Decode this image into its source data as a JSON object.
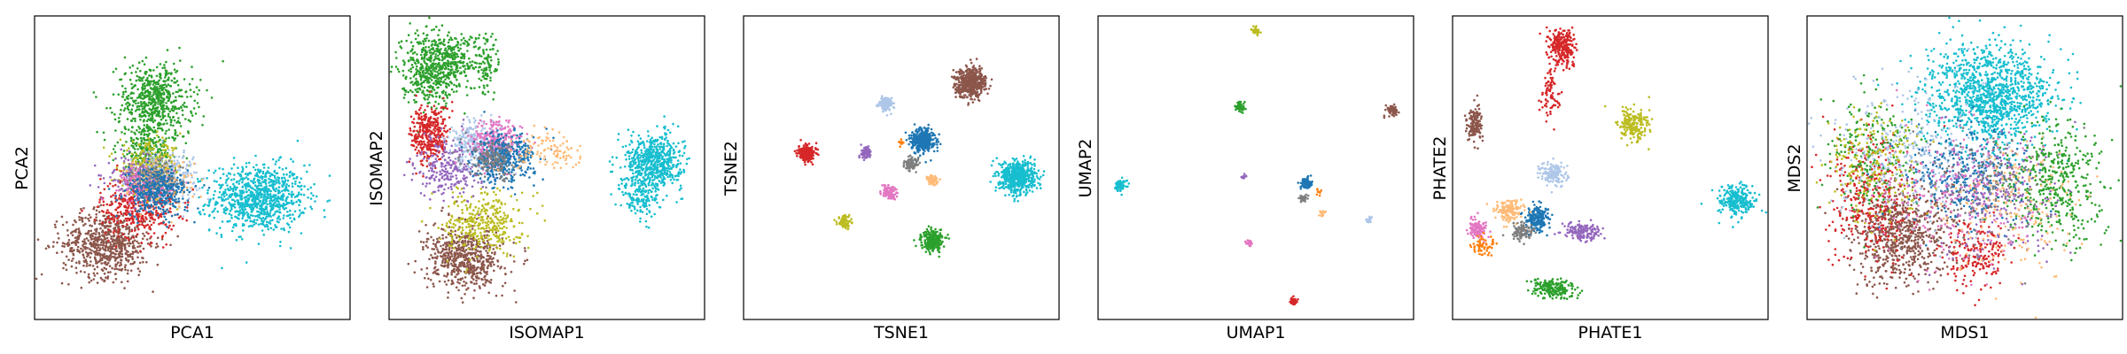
{
  "chart_data": [
    {
      "type": "scatter",
      "xlabel": "PCA1",
      "ylabel": "PCA2",
      "xlim": [
        0,
        100
      ],
      "ylim": [
        0,
        100
      ],
      "ticks": "none",
      "grid": false,
      "series": [
        {
          "color": "#17becf",
          "clusters": [
            {
              "x": 71,
              "y": 40,
              "sx": 7.5,
              "sy": 5.5,
              "n": 900
            }
          ]
        },
        {
          "color": "#8c564b",
          "clusters": [
            {
              "x": 23,
              "y": 25,
              "sx": 7,
              "sy": 5.5,
              "n": 700
            }
          ]
        },
        {
          "color": "#d62728",
          "clusters": [
            {
              "x": 33,
              "y": 37,
              "sx": 6,
              "sy": 5,
              "n": 400
            }
          ]
        },
        {
          "color": "#2ca02c",
          "clusters": [
            {
              "x": 38,
              "y": 72,
              "sx": 6,
              "sy": 6,
              "n": 600
            },
            {
              "x": 36,
              "y": 56,
              "sx": 5,
              "sy": 4,
              "n": 200
            }
          ]
        },
        {
          "color": "#bcbd22",
          "clusters": [
            {
              "x": 37,
              "y": 50,
              "sx": 5,
              "sy": 4,
              "n": 300
            }
          ]
        },
        {
          "color": "#9467bd",
          "clusters": [
            {
              "x": 31,
              "y": 47,
              "sx": 4,
              "sy": 3,
              "n": 150
            }
          ]
        },
        {
          "color": "#aec7e8",
          "clusters": [
            {
              "x": 42,
              "y": 48,
              "sx": 5,
              "sy": 4,
              "n": 200
            }
          ]
        },
        {
          "color": "#ffbb78",
          "clusters": [
            {
              "x": 40,
              "y": 45,
              "sx": 5,
              "sy": 4,
              "n": 150
            }
          ]
        },
        {
          "color": "#e377c2",
          "clusters": [
            {
              "x": 36,
              "y": 44,
              "sx": 4,
              "sy": 3,
              "n": 150
            }
          ]
        },
        {
          "color": "#7f7f7f",
          "clusters": [
            {
              "x": 39,
              "y": 46,
              "sx": 4,
              "sy": 3,
              "n": 150
            }
          ]
        },
        {
          "color": "#1f77b4",
          "clusters": [
            {
              "x": 39,
              "y": 42,
              "sx": 5,
              "sy": 4,
              "n": 350
            }
          ]
        }
      ]
    },
    {
      "type": "scatter",
      "xlabel": "ISOMAP1",
      "ylabel": "ISOMAP2",
      "xlim": [
        0,
        100
      ],
      "ylim": [
        0,
        100
      ],
      "ticks": "none",
      "grid": false,
      "series": [
        {
          "color": "#17becf",
          "clusters": [
            {
              "x": 84,
              "y": 52,
              "sx": 4.5,
              "sy": 4.5,
              "n": 600
            },
            {
              "x": 80,
              "y": 40,
              "sx": 3,
              "sy": 4,
              "n": 150
            }
          ]
        },
        {
          "color": "#2ca02c",
          "clusters": [
            {
              "x": 12,
              "y": 83,
              "sx": 4,
              "sy": 6,
              "n": 400
            },
            {
              "x": 20,
              "y": 85,
              "sx": 4,
              "sy": 5,
              "n": 250
            },
            {
              "x": 31,
              "y": 84,
              "sx": 2,
              "sy": 5,
              "n": 100
            }
          ]
        },
        {
          "color": "#d62728",
          "clusters": [
            {
              "x": 13,
              "y": 61,
              "sx": 3,
              "sy": 5,
              "n": 350
            }
          ]
        },
        {
          "color": "#8c564b",
          "clusters": [
            {
              "x": 24,
              "y": 20,
              "sx": 6,
              "sy": 5,
              "n": 600
            }
          ]
        },
        {
          "color": "#bcbd22",
          "clusters": [
            {
              "x": 30,
              "y": 32,
              "sx": 6,
              "sy": 5,
              "n": 350
            }
          ]
        },
        {
          "color": "#9467bd",
          "clusters": [
            {
              "x": 19,
              "y": 50,
              "sx": 5,
              "sy": 5,
              "n": 250
            }
          ]
        },
        {
          "color": "#aec7e8",
          "clusters": [
            {
              "x": 28,
              "y": 58,
              "sx": 5,
              "sy": 4,
              "n": 250
            }
          ]
        },
        {
          "color": "#e377c2",
          "clusters": [
            {
              "x": 34,
              "y": 58,
              "sx": 4,
              "sy": 4,
              "n": 300
            }
          ]
        },
        {
          "color": "#1f77b4",
          "clusters": [
            {
              "x": 36,
              "y": 53,
              "sx": 5,
              "sy": 4,
              "n": 400
            }
          ]
        },
        {
          "color": "#7f7f7f",
          "clusters": [
            {
              "x": 33,
              "y": 52,
              "sx": 4,
              "sy": 3,
              "n": 150
            }
          ]
        },
        {
          "color": "#ffbb78",
          "clusters": [
            {
              "x": 52,
              "y": 55,
              "sx": 6,
              "sy": 3,
              "n": 100
            }
          ]
        }
      ]
    },
    {
      "type": "scatter",
      "xlabel": "TSNE1",
      "ylabel": "TSNE2",
      "xlim": [
        0,
        100
      ],
      "ylim": [
        0,
        100
      ],
      "ticks": "none",
      "grid": false,
      "series": [
        {
          "color": "#8c564b",
          "clusters": [
            {
              "x": 72,
              "y": 78,
              "sx": 2.4,
              "sy": 2.4,
              "n": 500
            }
          ]
        },
        {
          "color": "#17becf",
          "clusters": [
            {
              "x": 87,
              "y": 47,
              "sx": 2.8,
              "sy": 2.6,
              "n": 600
            }
          ]
        },
        {
          "color": "#1f77b4",
          "clusters": [
            {
              "x": 57,
              "y": 59,
              "sx": 1.8,
              "sy": 1.8,
              "n": 400
            }
          ]
        },
        {
          "color": "#d62728",
          "clusters": [
            {
              "x": 20,
              "y": 55,
              "sx": 1.4,
              "sy": 1.4,
              "n": 200
            }
          ]
        },
        {
          "color": "#aec7e8",
          "clusters": [
            {
              "x": 45,
              "y": 71,
              "sx": 1.1,
              "sy": 1.1,
              "n": 120
            }
          ]
        },
        {
          "color": "#9467bd",
          "clusters": [
            {
              "x": 39,
              "y": 55,
              "sx": 0.9,
              "sy": 0.9,
              "n": 80
            }
          ]
        },
        {
          "color": "#7f7f7f",
          "clusters": [
            {
              "x": 53,
              "y": 51,
              "sx": 1.0,
              "sy": 1.0,
              "n": 100
            }
          ]
        },
        {
          "color": "#ffbb78",
          "clusters": [
            {
              "x": 60,
              "y": 46,
              "sx": 0.9,
              "sy": 0.9,
              "n": 80
            }
          ]
        },
        {
          "color": "#e377c2",
          "clusters": [
            {
              "x": 46,
              "y": 42,
              "sx": 1.1,
              "sy": 1.1,
              "n": 100
            }
          ]
        },
        {
          "color": "#bcbd22",
          "clusters": [
            {
              "x": 32,
              "y": 32,
              "sx": 1.1,
              "sy": 1.1,
              "n": 100
            }
          ]
        },
        {
          "color": "#2ca02c",
          "clusters": [
            {
              "x": 60,
              "y": 26,
              "sx": 1.7,
              "sy": 1.7,
              "n": 250
            }
          ]
        },
        {
          "color": "#ff7f0e",
          "clusters": [
            {
              "x": 50,
              "y": 58,
              "sx": 0.6,
              "sy": 0.6,
              "n": 10
            }
          ]
        }
      ]
    },
    {
      "type": "scatter",
      "xlabel": "UMAP1",
      "ylabel": "UMAP2",
      "xlim": [
        0,
        100
      ],
      "ylim": [
        0,
        100
      ],
      "ticks": "none",
      "grid": false,
      "series": [
        {
          "color": "#bcbd22",
          "clusters": [
            {
              "x": 50,
              "y": 95,
              "sx": 0.6,
              "sy": 0.6,
              "n": 40
            }
          ]
        },
        {
          "color": "#2ca02c",
          "clusters": [
            {
              "x": 45,
              "y": 70,
              "sx": 0.8,
              "sy": 0.8,
              "n": 50
            }
          ]
        },
        {
          "color": "#8c564b",
          "clusters": [
            {
              "x": 93,
              "y": 69,
              "sx": 0.9,
              "sy": 0.9,
              "n": 60
            }
          ]
        },
        {
          "color": "#17becf",
          "clusters": [
            {
              "x": 7,
              "y": 44,
              "sx": 1.0,
              "sy": 1.0,
              "n": 80
            }
          ]
        },
        {
          "color": "#9467bd",
          "clusters": [
            {
              "x": 46,
              "y": 47,
              "sx": 0.4,
              "sy": 0.4,
              "n": 10
            }
          ]
        },
        {
          "color": "#1f77b4",
          "clusters": [
            {
              "x": 66,
              "y": 45,
              "sx": 0.9,
              "sy": 0.9,
              "n": 80
            }
          ]
        },
        {
          "color": "#7f7f7f",
          "clusters": [
            {
              "x": 65,
              "y": 40,
              "sx": 0.6,
              "sy": 0.6,
              "n": 40
            }
          ]
        },
        {
          "color": "#ffbb78",
          "clusters": [
            {
              "x": 71,
              "y": 35,
              "sx": 0.5,
              "sy": 0.5,
              "n": 15
            }
          ]
        },
        {
          "color": "#aec7e8",
          "clusters": [
            {
              "x": 86,
              "y": 33,
              "sx": 0.5,
              "sy": 0.5,
              "n": 20
            }
          ]
        },
        {
          "color": "#e377c2",
          "clusters": [
            {
              "x": 48,
              "y": 25,
              "sx": 0.5,
              "sy": 0.5,
              "n": 30
            }
          ]
        },
        {
          "color": "#d62728",
          "clusters": [
            {
              "x": 62,
              "y": 6,
              "sx": 0.6,
              "sy": 0.6,
              "n": 40
            }
          ]
        },
        {
          "color": "#ff7f0e",
          "clusters": [
            {
              "x": 70,
              "y": 42,
              "sx": 0.8,
              "sy": 0.8,
              "n": 8
            }
          ]
        }
      ]
    },
    {
      "type": "scatter",
      "xlabel": "PHATE1",
      "ylabel": "PHATE2",
      "xlim": [
        0,
        100
      ],
      "ylim": [
        0,
        100
      ],
      "ticks": "none",
      "grid": false,
      "series": [
        {
          "color": "#d62728",
          "clusters": [
            {
              "x": 35,
              "y": 90,
              "sx": 2,
              "sy": 3,
              "n": 250
            },
            {
              "x": 31,
              "y": 75,
              "sx": 1.5,
              "sy": 4,
              "n": 80
            }
          ]
        },
        {
          "color": "#8c564b",
          "clusters": [
            {
              "x": 7,
              "y": 64,
              "sx": 1.2,
              "sy": 3,
              "n": 150
            }
          ]
        },
        {
          "color": "#bcbd22",
          "clusters": [
            {
              "x": 57,
              "y": 64,
              "sx": 2.5,
              "sy": 3,
              "n": 200
            }
          ]
        },
        {
          "color": "#17becf",
          "clusters": [
            {
              "x": 90,
              "y": 39,
              "sx": 3,
              "sy": 2.5,
              "n": 250
            }
          ]
        },
        {
          "color": "#aec7e8",
          "clusters": [
            {
              "x": 32,
              "y": 48,
              "sx": 2,
              "sy": 2,
              "n": 150
            }
          ]
        },
        {
          "color": "#1f77b4",
          "clusters": [
            {
              "x": 27,
              "y": 33,
              "sx": 2,
              "sy": 2,
              "n": 200
            }
          ]
        },
        {
          "color": "#ffbb78",
          "clusters": [
            {
              "x": 18,
              "y": 36,
              "sx": 2,
              "sy": 2,
              "n": 150
            }
          ]
        },
        {
          "color": "#9467bd",
          "clusters": [
            {
              "x": 41,
              "y": 29,
              "sx": 3,
              "sy": 1.5,
              "n": 150
            }
          ]
        },
        {
          "color": "#7f7f7f",
          "clusters": [
            {
              "x": 22,
              "y": 29,
              "sx": 2,
              "sy": 1.5,
              "n": 100
            }
          ]
        },
        {
          "color": "#e377c2",
          "clusters": [
            {
              "x": 8,
              "y": 30,
              "sx": 1.5,
              "sy": 1.5,
              "n": 120
            }
          ]
        },
        {
          "color": "#2ca02c",
          "clusters": [
            {
              "x": 32,
              "y": 10,
              "sx": 3.5,
              "sy": 1.5,
              "n": 200
            }
          ]
        },
        {
          "color": "#ff7f0e",
          "clusters": [
            {
              "x": 10,
              "y": 24,
              "sx": 2,
              "sy": 2,
              "n": 60
            }
          ]
        }
      ]
    },
    {
      "type": "scatter",
      "xlabel": "MDS1",
      "ylabel": "MDS2",
      "xlim": [
        0,
        100
      ],
      "ylim": [
        0,
        100
      ],
      "ticks": "none",
      "grid": false,
      "series": [
        {
          "color": "#17becf",
          "clusters": [
            {
              "x": 58,
              "y": 74,
              "sx": 10,
              "sy": 8,
              "n": 1200
            }
          ]
        },
        {
          "color": "#8c564b",
          "clusters": [
            {
              "x": 30,
              "y": 28,
              "sx": 8,
              "sy": 8,
              "n": 700
            }
          ]
        },
        {
          "color": "#d62728",
          "clusters": [
            {
              "x": 20,
              "y": 40,
              "sx": 7,
              "sy": 10,
              "n": 350
            },
            {
              "x": 53,
              "y": 22,
              "sx": 5,
              "sy": 6,
              "n": 200
            }
          ]
        },
        {
          "color": "#2ca02c",
          "clusters": [
            {
              "x": 78,
              "y": 45,
              "sx": 8,
              "sy": 10,
              "n": 450
            },
            {
              "x": 20,
              "y": 55,
              "sx": 7,
              "sy": 10,
              "n": 200
            }
          ]
        },
        {
          "color": "#1f77b4",
          "clusters": [
            {
              "x": 50,
              "y": 48,
              "sx": 10,
              "sy": 8,
              "n": 350
            }
          ]
        },
        {
          "color": "#aec7e8",
          "clusters": [
            {
              "x": 30,
              "y": 55,
              "sx": 12,
              "sy": 12,
              "n": 300
            }
          ]
        },
        {
          "color": "#9467bd",
          "clusters": [
            {
              "x": 60,
              "y": 40,
              "sx": 10,
              "sy": 10,
              "n": 250
            }
          ]
        },
        {
          "color": "#bcbd22",
          "clusters": [
            {
              "x": 22,
              "y": 50,
              "sx": 8,
              "sy": 10,
              "n": 200
            }
          ]
        },
        {
          "color": "#ffbb78",
          "clusters": [
            {
              "x": 65,
              "y": 35,
              "sx": 10,
              "sy": 10,
              "n": 200
            }
          ]
        },
        {
          "color": "#e377c2",
          "clusters": [
            {
              "x": 45,
              "y": 40,
              "sx": 12,
              "sy": 12,
              "n": 200
            }
          ]
        },
        {
          "color": "#7f7f7f",
          "clusters": [
            {
              "x": 55,
              "y": 45,
              "sx": 10,
              "sy": 10,
              "n": 150
            }
          ]
        }
      ]
    }
  ]
}
